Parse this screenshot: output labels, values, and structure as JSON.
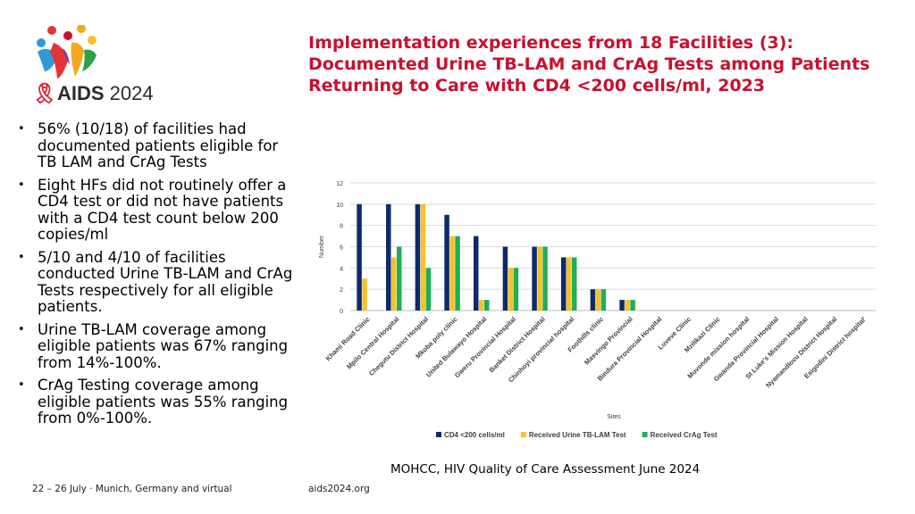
{
  "logo": {
    "ribbon": "🎗",
    "brand": "AIDS",
    "year": "2024"
  },
  "title": "Implementation experiences from 18 Facilities (3): Documented Urine TB-LAM and CrAg Tests among Patients Returning to Care with CD4 <200 cells/ml, 2023",
  "bullets": [
    "56% (10/18) of facilities had documented patients eligible for TB LAM  and CrAg Tests",
    "Eight HFs did not routinely offer a CD4 test or did not have patients with a CD4 test count below 200 copies/ml",
    "5/10 and 4/10 of facilities conducted Urine TB-LAM and CrAg Tests respectively for all eligible patients.",
    "Urine TB-LAM coverage among eligible patients was 67% ranging from 14%-100%.",
    "CrAg Testing coverage among eligible patients was 55% ranging from 0%-100%."
  ],
  "bullet_marker": "•",
  "chart_data": {
    "type": "bar",
    "title": "",
    "xlabel": "Sites",
    "ylabel": "Number",
    "ylim": [
      0,
      12
    ],
    "yticks": [
      0,
      2,
      4,
      6,
      8,
      10,
      12
    ],
    "grid": true,
    "legend_position": "bottom",
    "categories": [
      "Khami Road Clinic",
      "Mpilo Central Hospital",
      "Chegutu District Hospital",
      "Mkoba poly clinic",
      "United Bulawayo Hospital",
      "Gweru Provincial Hospital",
      "Banket District Hospital",
      "Chinhoyi provincial hospital",
      "Foothills clinic",
      "Masvingo Provincial",
      "Bindura Provincial Hospital",
      "Luveve Clinic",
      "Mzilikazi Clinic",
      "Muvonde mission hospital",
      "Gwanda Provincial Hospital",
      "St Luke's Mission Hospital",
      "Nyamandlovu District Hospital",
      "Esigodini District hospital'"
    ],
    "series": [
      {
        "name": "CD4 <200 cells/ml",
        "color": "#0d2a6b",
        "values": [
          10,
          10,
          10,
          9,
          7,
          6,
          6,
          5,
          2,
          1,
          0,
          0,
          0,
          0,
          0,
          0,
          0,
          0
        ]
      },
      {
        "name": "Received Urine TB-LAM Test",
        "color": "#f7c12b",
        "values": [
          3,
          5,
          10,
          7,
          1,
          4,
          6,
          5,
          2,
          1,
          0,
          0,
          0,
          0,
          0,
          0,
          0,
          0
        ]
      },
      {
        "name": "Received CrAg Test",
        "color": "#1fae59",
        "values": [
          0,
          6,
          4,
          7,
          1,
          4,
          6,
          5,
          2,
          1,
          0,
          0,
          0,
          0,
          0,
          0,
          0,
          0
        ]
      }
    ]
  },
  "source": "MOHCC, HIV Quality of Care Assessment June 2024",
  "footer": {
    "left": "22 – 26 July · Munich, Germany and virtual",
    "right": "aids2024.org"
  }
}
